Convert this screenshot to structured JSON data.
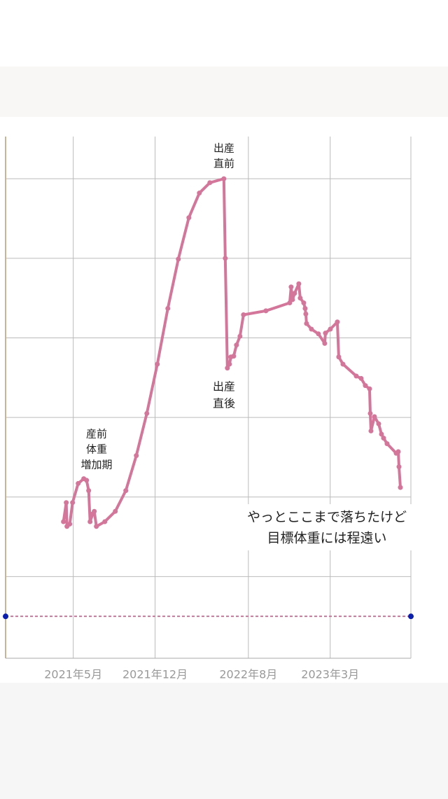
{
  "chart_data": {
    "type": "line",
    "x": [
      2021.263,
      2021.283,
      2021.288,
      2021.308,
      2021.328,
      2021.368,
      2021.408,
      2021.428,
      2021.443,
      2021.453,
      2021.473,
      2021.483,
      2021.498,
      2021.558,
      2021.633,
      2021.708,
      2021.783,
      2021.858,
      2021.933,
      2022.008,
      2022.083,
      2022.158,
      2022.233,
      2022.308,
      2022.408,
      2022.418,
      2022.433,
      2022.448,
      2022.458,
      2022.478,
      2022.498,
      2022.523,
      2022.548,
      2022.708,
      2022.878,
      2022.888,
      2022.898,
      2022.913,
      2022.943,
      2022.953,
      2022.978,
      2022.988,
      2022.993,
      2022.998,
      2023.033,
      2023.083,
      2023.128,
      2023.133,
      2023.168,
      2023.218,
      2023.228,
      2023.258,
      2023.353,
      2023.388,
      2023.418,
      2023.448,
      2023.453,
      2023.458,
      2023.483,
      2023.513,
      2023.533,
      2023.548,
      2023.573,
      2023.638,
      2023.653,
      2023.658,
      2023.668
    ],
    "series": [
      {
        "color": "#d4769a",
        "values": [
          1.69,
          1.93,
          1.63,
          1.66,
          1.93,
          2.17,
          2.23,
          2.21,
          2.08,
          1.69,
          1.79,
          1.82,
          1.63,
          1.69,
          1.82,
          2.08,
          2.52,
          3.05,
          3.67,
          4.37,
          4.99,
          5.51,
          5.82,
          5.95,
          6.0,
          5.0,
          3.62,
          3.67,
          3.76,
          3.77,
          3.91,
          4.02,
          4.29,
          4.34,
          4.44,
          4.64,
          4.48,
          4.56,
          4.68,
          4.5,
          4.44,
          4.37,
          4.3,
          4.18,
          4.11,
          4.05,
          3.93,
          4.06,
          4.11,
          4.2,
          3.76,
          3.67,
          3.52,
          3.49,
          3.4,
          3.36,
          3.05,
          2.83,
          3.01,
          2.92,
          2.79,
          2.74,
          2.67,
          2.55,
          2.57,
          2.38,
          2.12
        ]
      }
    ],
    "target": 0.5,
    "target_color": "#0a1fb0",
    "xlim": [
      2020.85,
      2023.743
    ],
    "xticks": [
      {
        "value": 2021.333,
        "label": "2021年5月"
      },
      {
        "value": 2021.917,
        "label": "2021年12月"
      },
      {
        "value": 2022.583,
        "label": "2022年8月"
      },
      {
        "value": 2023.167,
        "label": "2023年3月"
      }
    ],
    "ylim": [
      0,
      6.53
    ],
    "yticks": [
      1,
      2,
      3,
      4,
      5,
      6
    ],
    "grid": true,
    "annotations": [
      [
        "産前",
        "体重",
        "増加期"
      ],
      [
        "出産",
        "直前"
      ],
      [
        "出産",
        "直後"
      ],
      [
        "やっとここまで落ちたけど",
        "目標体重には程遠い"
      ]
    ]
  }
}
